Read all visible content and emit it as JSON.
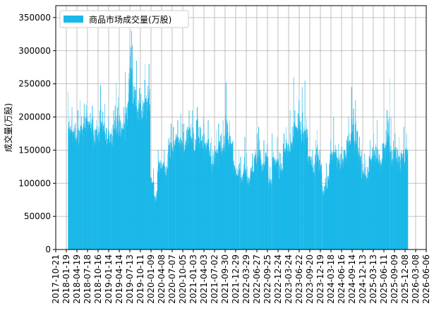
{
  "chart_data": {
    "type": "bar",
    "title": "",
    "xlabel": "",
    "ylabel": "成交量(万股)",
    "legend": {
      "label": "商品市场成交量(万股)",
      "placement": "top-left"
    },
    "series_color": "#1BB8E8",
    "ylim": [
      0,
      368000
    ],
    "yticks": [
      0,
      50000,
      100000,
      150000,
      200000,
      250000,
      300000,
      350000
    ],
    "ytick_labels": [
      "0",
      "50000",
      "100000",
      "150000",
      "200000",
      "250000",
      "300000",
      "350000"
    ],
    "xlim": [
      "2017-10-21",
      "2026-06-06"
    ],
    "xtick_dates": [
      "2017-10-21",
      "2018-01-19",
      "2018-04-19",
      "2018-07-18",
      "2018-10-16",
      "2019-01-14",
      "2019-04-14",
      "2019-07-13",
      "2019-10-11",
      "2020-01-09",
      "2020-04-08",
      "2020-07-07",
      "2020-10-05",
      "2021-01-03",
      "2021-04-03",
      "2021-07-02",
      "2021-09-30",
      "2021-12-29",
      "2022-03-29",
      "2022-06-27",
      "2022-09-25",
      "2022-12-24",
      "2023-03-24",
      "2023-06-22",
      "2023-09-20",
      "2023-12-19",
      "2024-03-18",
      "2024-06-16",
      "2024-09-14",
      "2024-12-13",
      "2025-03-13",
      "2025-06-11",
      "2025-09-09",
      "2025-12-08",
      "2026-03-08",
      "2026-06-06"
    ],
    "grid": true,
    "months": [
      {
        "date": "2018-02",
        "base": 180000,
        "peak": 238000
      },
      {
        "date": "2018-03",
        "base": 190000,
        "peak": 215000
      },
      {
        "date": "2018-04",
        "base": 185000,
        "peak": 210000
      },
      {
        "date": "2018-05",
        "base": 190000,
        "peak": 225000
      },
      {
        "date": "2018-06",
        "base": 190000,
        "peak": 220000
      },
      {
        "date": "2018-07",
        "base": 200000,
        "peak": 218000
      },
      {
        "date": "2018-08",
        "base": 195000,
        "peak": 217000
      },
      {
        "date": "2018-09",
        "base": 180000,
        "peak": 200000
      },
      {
        "date": "2018-10",
        "base": 185000,
        "peak": 210000
      },
      {
        "date": "2018-11",
        "base": 190000,
        "peak": 248000
      },
      {
        "date": "2018-12",
        "base": 180000,
        "peak": 220000
      },
      {
        "date": "2019-01",
        "base": 175000,
        "peak": 200000
      },
      {
        "date": "2019-02",
        "base": 180000,
        "peak": 210000
      },
      {
        "date": "2019-03",
        "base": 195000,
        "peak": 252000
      },
      {
        "date": "2019-04",
        "base": 195000,
        "peak": 230000
      },
      {
        "date": "2019-05",
        "base": 190000,
        "peak": 215000
      },
      {
        "date": "2019-06",
        "base": 215000,
        "peak": 268000
      },
      {
        "date": "2019-07",
        "base": 275000,
        "peak": 330000
      },
      {
        "date": "2019-08",
        "base": 240000,
        "peak": 308000
      },
      {
        "date": "2019-09",
        "base": 215000,
        "peak": 285000
      },
      {
        "date": "2019-10",
        "base": 215000,
        "peak": 235000
      },
      {
        "date": "2019-11",
        "base": 235000,
        "peak": 280000
      },
      {
        "date": "2019-12",
        "base": 235000,
        "peak": 280000
      },
      {
        "date": "2020-01",
        "base": 110000,
        "peak": 122000
      },
      {
        "date": "2020-02",
        "base": 82000,
        "peak": 100000
      },
      {
        "date": "2020-03",
        "base": 130000,
        "peak": 150000
      },
      {
        "date": "2020-04",
        "base": 130000,
        "peak": 150000
      },
      {
        "date": "2020-05",
        "base": 125000,
        "peak": 145000
      },
      {
        "date": "2020-06",
        "base": 160000,
        "peak": 190000
      },
      {
        "date": "2020-07",
        "base": 165000,
        "peak": 185000
      },
      {
        "date": "2020-08",
        "base": 170000,
        "peak": 195000
      },
      {
        "date": "2020-09",
        "base": 175000,
        "peak": 205000
      },
      {
        "date": "2020-10",
        "base": 160000,
        "peak": 190000
      },
      {
        "date": "2020-11",
        "base": 185000,
        "peak": 210000
      },
      {
        "date": "2020-12",
        "base": 180000,
        "peak": 210000
      },
      {
        "date": "2021-01",
        "base": 170000,
        "peak": 195000
      },
      {
        "date": "2021-02",
        "base": 175000,
        "peak": 215000
      },
      {
        "date": "2021-03",
        "base": 170000,
        "peak": 200000
      },
      {
        "date": "2021-04",
        "base": 165000,
        "peak": 190000
      },
      {
        "date": "2021-05",
        "base": 160000,
        "peak": 195000
      },
      {
        "date": "2021-06",
        "base": 140000,
        "peak": 170000
      },
      {
        "date": "2021-07",
        "base": 150000,
        "peak": 180000
      },
      {
        "date": "2021-08",
        "base": 165000,
        "peak": 190000
      },
      {
        "date": "2021-09",
        "base": 160000,
        "peak": 195000
      },
      {
        "date": "2021-10",
        "base": 175000,
        "peak": 252000
      },
      {
        "date": "2021-11",
        "base": 165000,
        "peak": 195000
      },
      {
        "date": "2021-12",
        "base": 130000,
        "peak": 165000
      },
      {
        "date": "2022-01",
        "base": 125000,
        "peak": 150000
      },
      {
        "date": "2022-02",
        "base": 110000,
        "peak": 140000
      },
      {
        "date": "2022-03",
        "base": 125000,
        "peak": 170000
      },
      {
        "date": "2022-04",
        "base": 110000,
        "peak": 125000
      },
      {
        "date": "2022-05",
        "base": 125000,
        "peak": 145000
      },
      {
        "date": "2022-06",
        "base": 140000,
        "peak": 175000
      },
      {
        "date": "2022-07",
        "base": 150000,
        "peak": 185000
      },
      {
        "date": "2022-08",
        "base": 135000,
        "peak": 165000
      },
      {
        "date": "2022-09",
        "base": 140000,
        "peak": 160000
      },
      {
        "date": "2022-10",
        "base": 105000,
        "peak": 125000
      },
      {
        "date": "2022-11",
        "base": 140000,
        "peak": 175000
      },
      {
        "date": "2022-12",
        "base": 135000,
        "peak": 170000
      },
      {
        "date": "2023-01",
        "base": 125000,
        "peak": 145000
      },
      {
        "date": "2023-02",
        "base": 155000,
        "peak": 175000
      },
      {
        "date": "2023-03",
        "base": 165000,
        "peak": 185000
      },
      {
        "date": "2023-04",
        "base": 175000,
        "peak": 210000
      },
      {
        "date": "2023-05",
        "base": 185000,
        "peak": 260000
      },
      {
        "date": "2023-06",
        "base": 185000,
        "peak": 225000
      },
      {
        "date": "2023-07",
        "base": 190000,
        "peak": 245000
      },
      {
        "date": "2023-08",
        "base": 180000,
        "peak": 255000
      },
      {
        "date": "2023-09",
        "base": 145000,
        "peak": 170000
      },
      {
        "date": "2023-10",
        "base": 125000,
        "peak": 150000
      },
      {
        "date": "2023-11",
        "base": 150000,
        "peak": 180000
      },
      {
        "date": "2023-12",
        "base": 130000,
        "peak": 150000
      },
      {
        "date": "2024-01",
        "base": 95000,
        "peak": 108000
      },
      {
        "date": "2024-02",
        "base": 105000,
        "peak": 130000
      },
      {
        "date": "2024-03",
        "base": 145000,
        "peak": 165000
      },
      {
        "date": "2024-04",
        "base": 150000,
        "peak": 200000
      },
      {
        "date": "2024-05",
        "base": 140000,
        "peak": 160000
      },
      {
        "date": "2024-06",
        "base": 135000,
        "peak": 155000
      },
      {
        "date": "2024-07",
        "base": 150000,
        "peak": 165000
      },
      {
        "date": "2024-08",
        "base": 165000,
        "peak": 200000
      },
      {
        "date": "2024-09",
        "base": 185000,
        "peak": 245000
      },
      {
        "date": "2024-10",
        "base": 160000,
        "peak": 225000
      },
      {
        "date": "2024-11",
        "base": 145000,
        "peak": 170000
      },
      {
        "date": "2024-12",
        "base": 125000,
        "peak": 145000
      },
      {
        "date": "2025-01",
        "base": 115000,
        "peak": 135000
      },
      {
        "date": "2025-02",
        "base": 140000,
        "peak": 165000
      },
      {
        "date": "2025-03",
        "base": 150000,
        "peak": 175000
      },
      {
        "date": "2025-04",
        "base": 140000,
        "peak": 195000
      },
      {
        "date": "2025-05",
        "base": 135000,
        "peak": 160000
      },
      {
        "date": "2025-06",
        "base": 160000,
        "peak": 180000
      },
      {
        "date": "2025-07",
        "base": 170000,
        "peak": 258000
      },
      {
        "date": "2025-08",
        "base": 150000,
        "peak": 200000
      },
      {
        "date": "2025-09",
        "base": 150000,
        "peak": 175000
      },
      {
        "date": "2025-10",
        "base": 140000,
        "peak": 170000
      },
      {
        "date": "2025-11",
        "base": 150000,
        "peak": 185000
      },
      {
        "date": "2025-12",
        "base": 150000,
        "peak": 175000
      }
    ]
  }
}
